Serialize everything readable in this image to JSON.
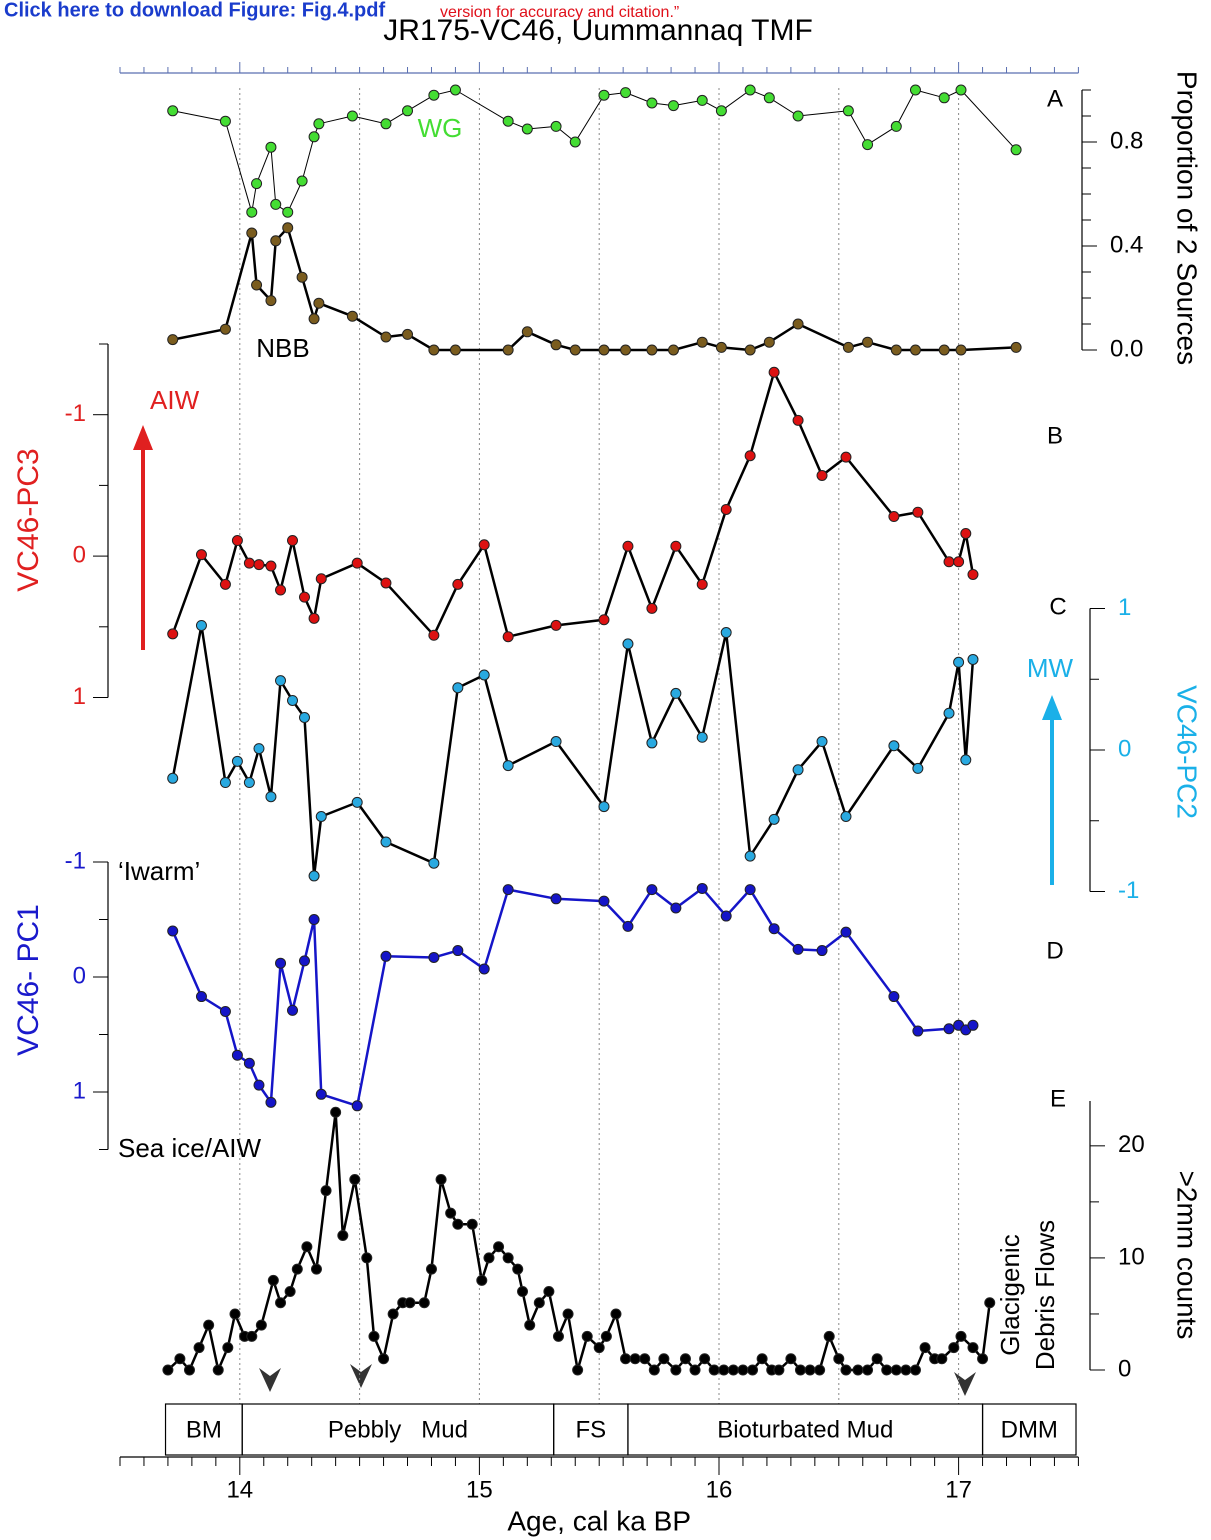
{
  "header": {
    "link": "Click here to download Figure: Fig.4.pdf",
    "notice": "version for accuracy and citation.”",
    "title": "JR175-VC46, Uummannaq TMF"
  },
  "chart_data": [
    {
      "type": "line",
      "panel": "A",
      "xlim": [
        13.5,
        17.5
      ],
      "ylim": [
        0,
        1
      ],
      "y_axis_side": "right",
      "axis_color": "#000000",
      "yticks": [
        {
          "value": 0,
          "label": "0.0"
        },
        0.4,
        0.8
      ],
      "yminorticks": [
        0.1,
        0.2,
        0.3,
        0.5,
        0.6,
        0.7,
        0.9,
        1.0
      ],
      "ylabel": "Proportion of 2 Sources",
      "x": [
        13.72,
        13.94,
        14.05,
        14.07,
        14.13,
        14.15,
        14.2,
        14.26,
        14.31,
        14.33,
        14.47,
        14.61,
        14.7,
        14.81,
        14.9,
        15.12,
        15.2,
        15.32,
        15.4,
        15.52,
        15.61,
        15.72,
        15.81,
        15.93,
        16.01,
        16.13,
        16.21,
        16.33,
        16.54,
        16.62,
        16.74,
        16.82,
        16.94,
        17.01,
        17.24
      ],
      "series": [
        {
          "name": "WG",
          "color": "#44dd33",
          "line_color": "#000000",
          "line_width": 1,
          "values": [
            0.92,
            0.88,
            0.53,
            0.64,
            0.78,
            0.56,
            0.53,
            0.65,
            0.82,
            0.87,
            0.9,
            0.87,
            0.92,
            0.98,
            1,
            0.88,
            0.85,
            0.86,
            0.8,
            0.98,
            0.99,
            0.95,
            0.94,
            0.96,
            0.92,
            1,
            0.97,
            0.9,
            0.92,
            0.79,
            0.86,
            1,
            0.97,
            1,
            0.77
          ]
        },
        {
          "name": "NBB",
          "color": "#7a5c1e",
          "line_color": "#000000",
          "line_width": 2.5,
          "values": [
            0.04,
            0.08,
            0.45,
            0.25,
            0.19,
            0.42,
            0.47,
            0.28,
            0.12,
            0.18,
            0.13,
            0.05,
            0.06,
            0,
            0,
            0,
            0.07,
            0.02,
            0,
            0,
            0,
            0,
            0,
            0.03,
            0.01,
            0,
            0.03,
            0.1,
            0.01,
            0.03,
            0,
            0,
            0,
            0,
            0.01
          ]
        }
      ]
    },
    {
      "type": "line",
      "panel": "B",
      "xlim": [
        13.5,
        17.5
      ],
      "ylim": [
        -1.5,
        1
      ],
      "inverted": true,
      "y_axis_side": "left",
      "axis_color": "#e02020",
      "yticks": [
        -1,
        0,
        1
      ],
      "yminorticks": [
        -1.5,
        -0.5,
        0.5
      ],
      "ylabel": "VC46-PC3",
      "annotations": [
        "AIW"
      ],
      "x": [
        13.72,
        13.84,
        13.94,
        13.99,
        14.04,
        14.08,
        14.13,
        14.17,
        14.22,
        14.27,
        14.31,
        14.34,
        14.49,
        14.61,
        14.81,
        14.91,
        15.02,
        15.12,
        15.32,
        15.52,
        15.62,
        15.72,
        15.82,
        15.93,
        16.03,
        16.13,
        16.23,
        16.33,
        16.43,
        16.53,
        16.73,
        16.83,
        16.96,
        17.0,
        17.03,
        17.06
      ],
      "series": [
        {
          "color": "#dd1111",
          "line_color": "#000000",
          "line_width": 2.5,
          "values": [
            0.55,
            -0.01,
            0.2,
            -0.11,
            0.05,
            0.06,
            0.07,
            0.24,
            -0.11,
            0.29,
            0.44,
            0.16,
            0.05,
            0.19,
            0.56,
            0.2,
            -0.08,
            0.57,
            0.49,
            0.45,
            -0.07,
            0.37,
            -0.07,
            0.2,
            -0.33,
            -0.71,
            -1.3,
            -0.96,
            -0.57,
            -0.7,
            -0.28,
            -0.31,
            0.04,
            0.04,
            -0.16,
            0.13
          ]
        }
      ]
    },
    {
      "type": "line",
      "panel": "C",
      "xlim": [
        13.5,
        17.5
      ],
      "ylim": [
        -1,
        1
      ],
      "y_axis_side": "right",
      "axis_color": "#1ab0e8",
      "yticks": [
        -1,
        0,
        1
      ],
      "yminorticks": [
        -0.5,
        0.5
      ],
      "ylabel": "VC46-PC2",
      "annotations": [
        "MW"
      ],
      "x": [
        13.72,
        13.84,
        13.94,
        13.99,
        14.04,
        14.08,
        14.13,
        14.17,
        14.22,
        14.27,
        14.31,
        14.34,
        14.49,
        14.61,
        14.81,
        14.91,
        15.02,
        15.12,
        15.32,
        15.52,
        15.62,
        15.72,
        15.82,
        15.93,
        16.03,
        16.13,
        16.23,
        16.33,
        16.43,
        16.53,
        16.73,
        16.83,
        16.96,
        17.0,
        17.03,
        17.06
      ],
      "series": [
        {
          "color": "#29a9e0",
          "line_color": "#000000",
          "line_width": 2.5,
          "values": [
            -0.2,
            0.88,
            -0.23,
            -0.08,
            -0.23,
            0.01,
            -0.33,
            0.49,
            0.35,
            0.23,
            -0.89,
            -0.47,
            -0.37,
            -0.65,
            -0.8,
            0.44,
            0.53,
            -0.11,
            0.06,
            -0.4,
            0.75,
            0.05,
            0.4,
            0.09,
            0.83,
            -0.75,
            -0.49,
            -0.14,
            0.06,
            -0.47,
            0.03,
            -0.13,
            0.26,
            0.62,
            -0.07,
            0.64
          ]
        }
      ]
    },
    {
      "type": "line",
      "panel": "D",
      "xlim": [
        13.5,
        17.5
      ],
      "ylim": [
        -1,
        1.5
      ],
      "inverted": true,
      "y_axis_side": "left",
      "axis_color": "#1a1acc",
      "yticks": [
        -1,
        0,
        1
      ],
      "yminorticks": [
        -0.5,
        0.5,
        1.5
      ],
      "ylabel": "VC46- PC1",
      "annotations": [
        "‘Iwarm’",
        "Sea ice/AIW"
      ],
      "x": [
        13.72,
        13.84,
        13.94,
        13.99,
        14.04,
        14.08,
        14.13,
        14.17,
        14.22,
        14.27,
        14.31,
        14.34,
        14.49,
        14.61,
        14.81,
        14.91,
        15.02,
        15.12,
        15.32,
        15.52,
        15.62,
        15.72,
        15.82,
        15.93,
        16.03,
        16.13,
        16.23,
        16.33,
        16.43,
        16.53,
        16.73,
        16.83,
        16.96,
        17.0,
        17.03,
        17.06
      ],
      "series": [
        {
          "color": "#1515c8",
          "line_color": "#1515c8",
          "line_width": 2.5,
          "values": [
            -0.4,
            0.17,
            0.3,
            0.68,
            0.75,
            0.94,
            1.09,
            -0.12,
            0.29,
            -0.14,
            -0.5,
            1.02,
            1.12,
            -0.18,
            -0.17,
            -0.23,
            -0.07,
            -0.76,
            -0.68,
            -0.66,
            -0.44,
            -0.76,
            -0.6,
            -0.77,
            -0.53,
            -0.76,
            -0.42,
            -0.24,
            -0.23,
            -0.39,
            0.17,
            0.47,
            0.45,
            0.42,
            0.46,
            0.42
          ]
        }
      ]
    },
    {
      "type": "line",
      "panel": "E",
      "xlim": [
        13.5,
        17.5
      ],
      "ylim": [
        0,
        24
      ],
      "y_axis_side": "right",
      "axis_color": "#000000",
      "yticks": [
        0,
        10,
        20
      ],
      "yminorticks": [
        5,
        15
      ],
      "ylabel": ">2mm counts",
      "annotations": [
        "Glacigenic",
        "Debris Flows"
      ],
      "xticks": [
        14,
        15,
        16,
        17
      ],
      "xminorticks": [
        13.5,
        13.6,
        13.7,
        13.8,
        13.9,
        14.1,
        14.2,
        14.3,
        14.4,
        14.5,
        14.6,
        14.7,
        14.8,
        14.9,
        15.1,
        15.2,
        15.3,
        15.4,
        15.5,
        15.6,
        15.7,
        15.8,
        15.9,
        16.1,
        16.2,
        16.3,
        16.4,
        16.5,
        16.6,
        16.7,
        16.8,
        16.9,
        17.1,
        17.2,
        17.3,
        17.4,
        17.5
      ],
      "xgrid": [
        14,
        14.5,
        15,
        15.5,
        16,
        16.5,
        17
      ],
      "xlabel": "Age, cal ka BP",
      "units": [
        {
          "label": "BM",
          "start": 13.69,
          "end": 14.01
        },
        {
          "label": "Pebbly   Mud",
          "start": 14.01,
          "end": 15.31
        },
        {
          "label": "FS",
          "start": 15.31,
          "end": 15.62
        },
        {
          "label": "Bioturbated Mud",
          "start": 15.62,
          "end": 17.1
        },
        {
          "label": "DMM",
          "start": 17.1,
          "end": 17.49
        }
      ],
      "x": [
        13.7,
        13.75,
        13.79,
        13.83,
        13.87,
        13.91,
        13.95,
        13.98,
        14.02,
        14.05,
        14.09,
        14.14,
        14.17,
        14.21,
        14.24,
        14.28,
        14.32,
        14.36,
        14.4,
        14.43,
        14.48,
        14.53,
        14.56,
        14.6,
        14.64,
        14.68,
        14.71,
        14.77,
        14.8,
        14.84,
        14.88,
        14.91,
        14.97,
        15.01,
        15.04,
        15.08,
        15.12,
        15.16,
        15.18,
        15.21,
        15.25,
        15.29,
        15.33,
        15.37,
        15.41,
        15.45,
        15.5,
        15.53,
        15.57,
        15.61,
        15.65,
        15.69,
        15.73,
        15.77,
        15.82,
        15.86,
        15.9,
        15.94,
        15.98,
        16.02,
        16.06,
        16.1,
        16.14,
        16.18,
        16.22,
        16.25,
        16.3,
        16.34,
        16.38,
        16.42,
        16.46,
        16.5,
        16.53,
        16.58,
        16.62,
        16.66,
        16.7,
        16.74,
        16.78,
        16.82,
        16.86,
        16.9,
        16.93,
        16.98,
        17.01,
        17.06,
        17.1,
        17.13
      ],
      "series": [
        {
          "color": "#000000",
          "line_color": "#000000",
          "line_width": 2.5,
          "values": [
            0,
            1,
            0,
            2,
            4,
            0,
            2,
            5,
            3,
            3,
            4,
            8,
            6,
            7,
            9,
            11,
            9,
            16,
            23,
            12,
            17,
            10,
            3,
            1,
            5,
            6,
            6,
            6,
            9,
            17,
            14,
            13,
            13,
            8,
            10,
            11,
            10,
            9,
            7,
            4,
            6,
            7,
            3,
            5,
            0,
            3,
            2,
            3,
            5,
            1,
            1,
            1,
            0,
            1,
            0,
            1,
            0,
            1,
            0,
            0,
            0,
            0,
            0,
            1,
            0,
            0,
            1,
            0,
            0,
            0,
            3,
            1,
            0,
            0,
            0,
            1,
            0,
            0,
            0,
            0,
            2,
            1,
            1,
            2,
            3,
            2,
            1,
            6
          ]
        }
      ]
    }
  ]
}
